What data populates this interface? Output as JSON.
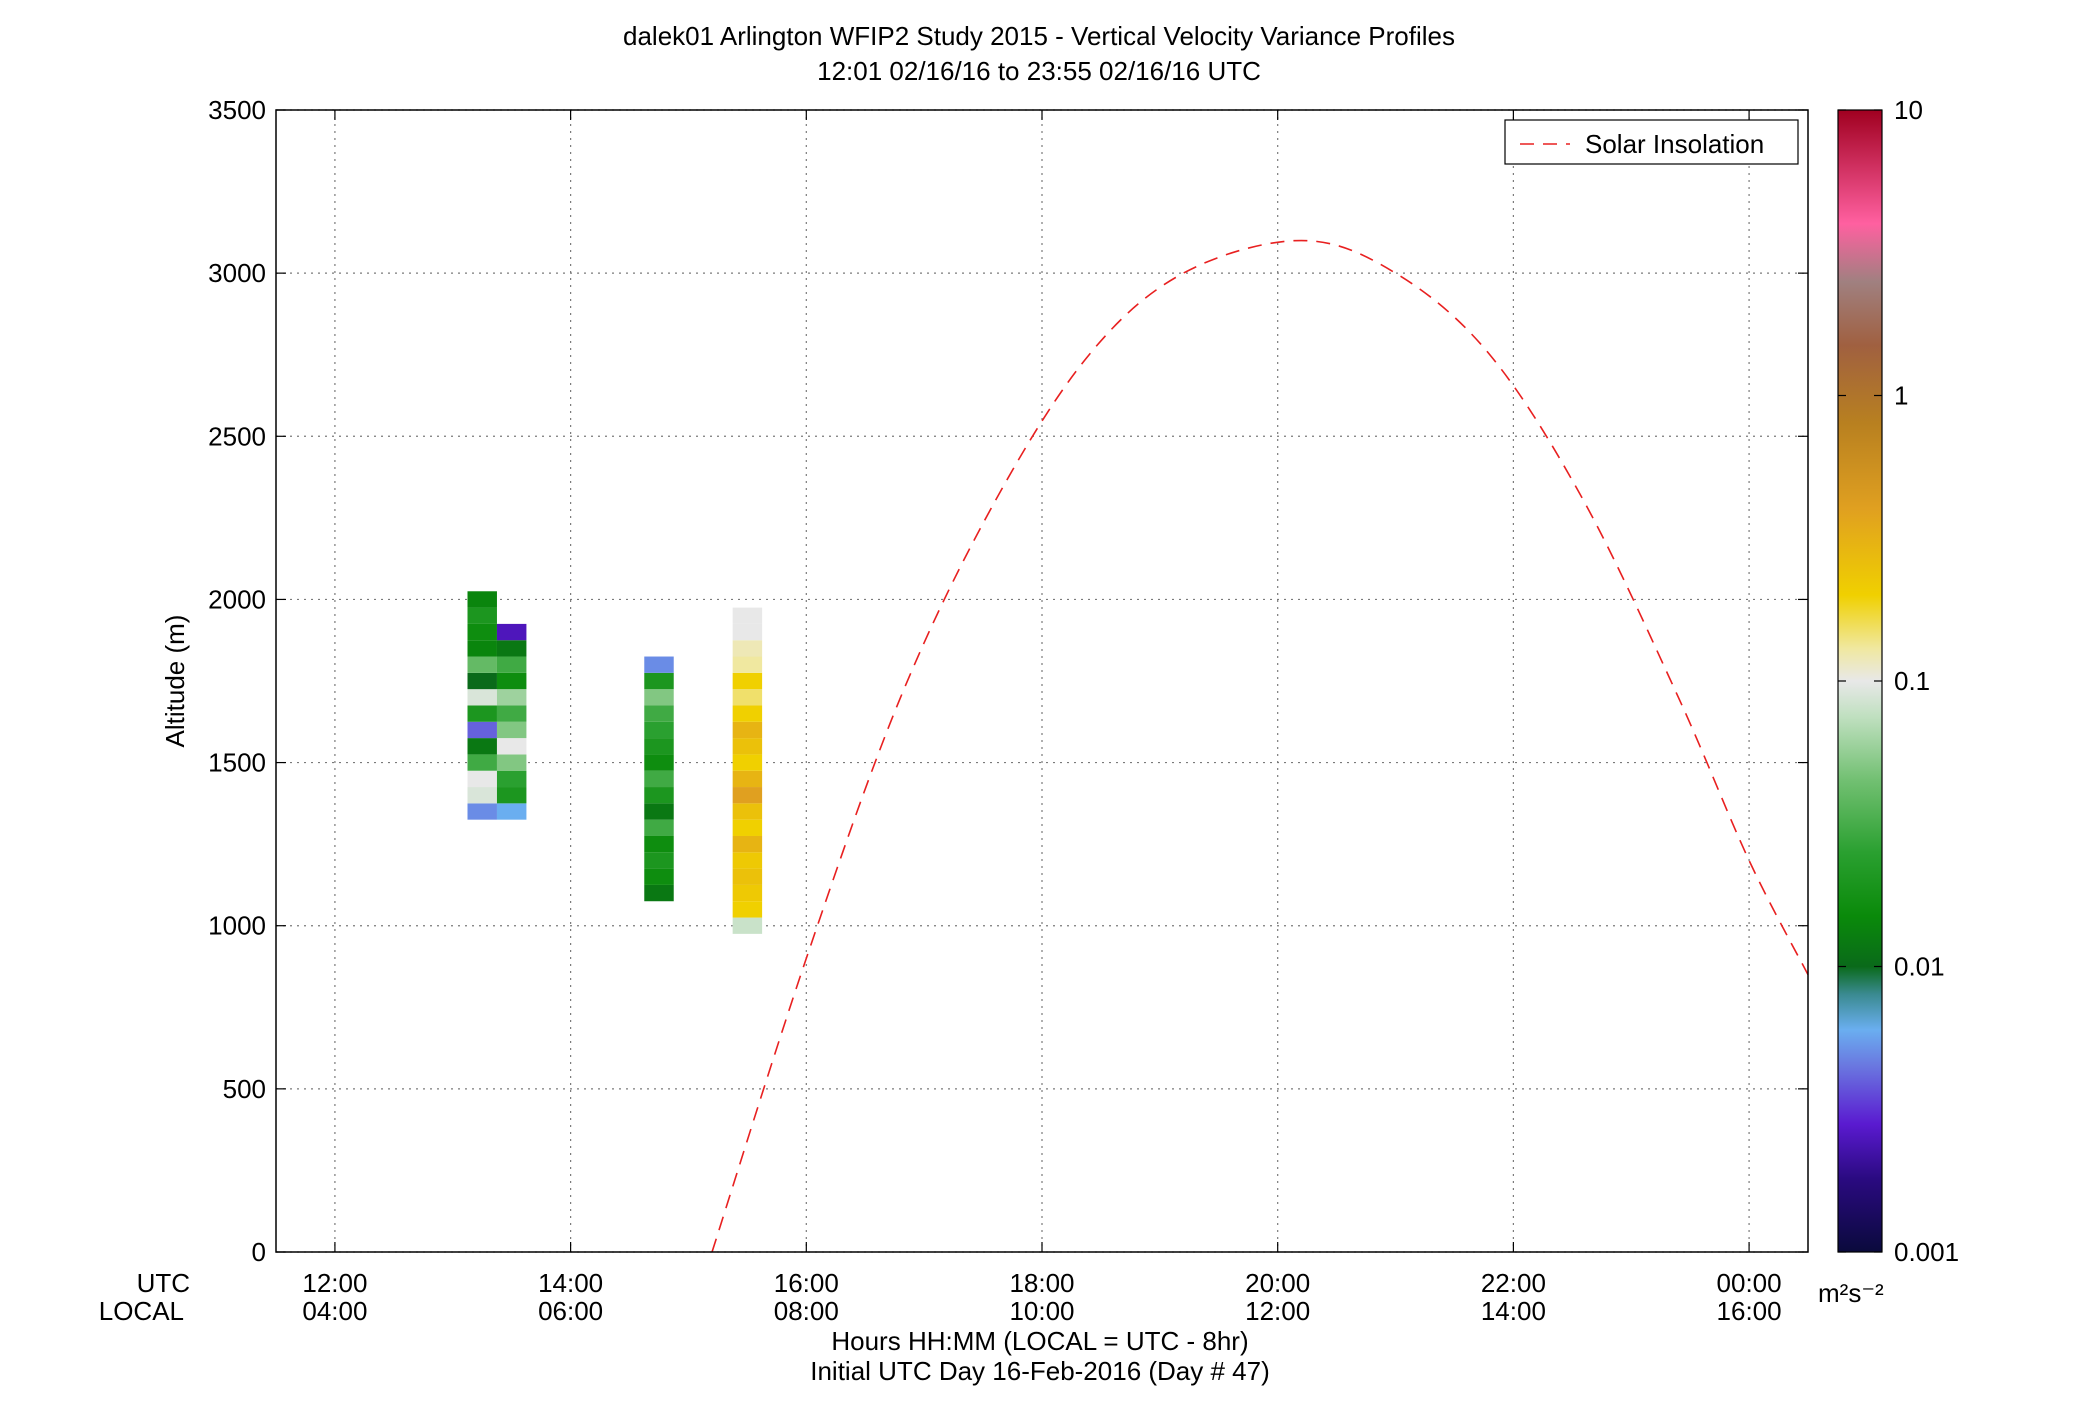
{
  "chart_data": {
    "type": "heatmap",
    "title": "dalek01 Arlington WFIP2 Study 2015 - Vertical Velocity Variance Profiles",
    "subtitle": "12:01 02/16/16 to 23:55 02/16/16  UTC",
    "ylabel": "Altitude (m)",
    "xlabel": "Hours HH:MM  (LOCAL = UTC - 8hr)",
    "xlabel2": "Initial UTC Day 16-Feb-2016 (Day # 47)",
    "axis_row_labels": [
      "UTC",
      "LOCAL"
    ],
    "xlim": [
      11.5,
      24.5
    ],
    "ylim": [
      0,
      3500
    ],
    "grid": true,
    "x_ticks": [
      {
        "value": 12,
        "utc": "12:00",
        "local": "04:00"
      },
      {
        "value": 14,
        "utc": "14:00",
        "local": "06:00"
      },
      {
        "value": 16,
        "utc": "16:00",
        "local": "08:00"
      },
      {
        "value": 18,
        "utc": "18:00",
        "local": "10:00"
      },
      {
        "value": 20,
        "utc": "20:00",
        "local": "12:00"
      },
      {
        "value": 22,
        "utc": "22:00",
        "local": "14:00"
      },
      {
        "value": 24,
        "utc": "00:00",
        "local": "16:00"
      }
    ],
    "y_ticks": [
      {
        "value": 0,
        "label": "0"
      },
      {
        "value": 500,
        "label": "500"
      },
      {
        "value": 1000,
        "label": "1000"
      },
      {
        "value": 1500,
        "label": "1500"
      },
      {
        "value": 2000,
        "label": "2000"
      },
      {
        "value": 2500,
        "label": "2500"
      },
      {
        "value": 3000,
        "label": "3000"
      },
      {
        "value": 3500,
        "label": "3500"
      }
    ],
    "colorbar": {
      "scale": "log",
      "range": [
        0.001,
        10
      ],
      "ticks": [
        {
          "value": 10,
          "label": "10"
        },
        {
          "value": 1,
          "label": "1"
        },
        {
          "value": 0.1,
          "label": "0.1"
        },
        {
          "value": 0.01,
          "label": "0.01"
        },
        {
          "value": 0.001,
          "label": "0.001"
        }
      ],
      "units": "m²s⁻²",
      "stops": [
        {
          "value": 0.001,
          "color": "#0a0a3c"
        },
        {
          "value": 0.0018,
          "color": "#2a0a80"
        },
        {
          "value": 0.0028,
          "color": "#5a1ad0"
        },
        {
          "value": 0.0045,
          "color": "#6a78e0"
        },
        {
          "value": 0.006,
          "color": "#6aaef0"
        },
        {
          "value": 0.008,
          "color": "#3a8a90"
        },
        {
          "value": 0.01,
          "color": "#0a6a1a"
        },
        {
          "value": 0.015,
          "color": "#0a8a0a"
        },
        {
          "value": 0.025,
          "color": "#2aa030"
        },
        {
          "value": 0.045,
          "color": "#72c072"
        },
        {
          "value": 0.075,
          "color": "#c0e0c0"
        },
        {
          "value": 0.1,
          "color": "#e8e8e8"
        },
        {
          "value": 0.13,
          "color": "#f0e8a0"
        },
        {
          "value": 0.2,
          "color": "#f0d000"
        },
        {
          "value": 0.4,
          "color": "#e0a020"
        },
        {
          "value": 0.8,
          "color": "#b88020"
        },
        {
          "value": 1.5,
          "color": "#a06040"
        },
        {
          "value": 2.5,
          "color": "#a08080"
        },
        {
          "value": 4,
          "color": "#ff60a0"
        },
        {
          "value": 10,
          "color": "#a00020"
        }
      ]
    },
    "cell_size": {
      "dt_hours": 0.25,
      "dz_m": 50
    },
    "cells": [
      [
        13.25,
        1350,
        0.005
      ],
      [
        13.25,
        1400,
        0.09
      ],
      [
        13.25,
        1450,
        0.1
      ],
      [
        13.25,
        1500,
        0.03
      ],
      [
        13.25,
        1550,
        0.012
      ],
      [
        13.25,
        1600,
        0.004
      ],
      [
        13.25,
        1650,
        0.02
      ],
      [
        13.25,
        1700,
        0.09
      ],
      [
        13.25,
        1750,
        0.01
      ],
      [
        13.25,
        1800,
        0.04
      ],
      [
        13.25,
        1850,
        0.014
      ],
      [
        13.25,
        1900,
        0.016
      ],
      [
        13.25,
        1950,
        0.02
      ],
      [
        13.25,
        2000,
        0.014
      ],
      [
        13.5,
        1350,
        0.006
      ],
      [
        13.5,
        1400,
        0.02
      ],
      [
        13.5,
        1450,
        0.025
      ],
      [
        13.5,
        1500,
        0.05
      ],
      [
        13.5,
        1550,
        0.1
      ],
      [
        13.5,
        1600,
        0.05
      ],
      [
        13.5,
        1650,
        0.03
      ],
      [
        13.5,
        1700,
        0.06
      ],
      [
        13.5,
        1750,
        0.016
      ],
      [
        13.5,
        1800,
        0.03
      ],
      [
        13.5,
        1850,
        0.012
      ],
      [
        13.5,
        1900,
        0.0025
      ],
      [
        14.75,
        1100,
        0.012
      ],
      [
        14.75,
        1150,
        0.016
      ],
      [
        14.75,
        1200,
        0.02
      ],
      [
        14.75,
        1250,
        0.016
      ],
      [
        14.75,
        1300,
        0.03
      ],
      [
        14.75,
        1350,
        0.012
      ],
      [
        14.75,
        1400,
        0.02
      ],
      [
        14.75,
        1450,
        0.03
      ],
      [
        14.75,
        1500,
        0.016
      ],
      [
        14.75,
        1550,
        0.02
      ],
      [
        14.75,
        1600,
        0.025
      ],
      [
        14.75,
        1650,
        0.03
      ],
      [
        14.75,
        1700,
        0.05
      ],
      [
        14.75,
        1750,
        0.02
      ],
      [
        14.75,
        1800,
        0.005
      ],
      [
        15.5,
        1000,
        0.08
      ],
      [
        15.5,
        1050,
        0.2
      ],
      [
        15.5,
        1100,
        0.22
      ],
      [
        15.5,
        1150,
        0.25
      ],
      [
        15.5,
        1200,
        0.22
      ],
      [
        15.5,
        1250,
        0.3
      ],
      [
        15.5,
        1300,
        0.2
      ],
      [
        15.5,
        1350,
        0.25
      ],
      [
        15.5,
        1400,
        0.4
      ],
      [
        15.5,
        1450,
        0.3
      ],
      [
        15.5,
        1500,
        0.2
      ],
      [
        15.5,
        1550,
        0.25
      ],
      [
        15.5,
        1600,
        0.3
      ],
      [
        15.5,
        1650,
        0.2
      ],
      [
        15.5,
        1700,
        0.15
      ],
      [
        15.5,
        1750,
        0.2
      ],
      [
        15.5,
        1800,
        0.13
      ],
      [
        15.5,
        1850,
        0.12
      ],
      [
        15.5,
        1900,
        0.1
      ],
      [
        15.5,
        1950,
        0.1
      ]
    ],
    "solar_insolation": {
      "name": "Solar Insolation",
      "color": "#e82020",
      "x": [
        15.2,
        16.0,
        16.8,
        17.6,
        18.4,
        19.2,
        20.2,
        21.0,
        21.8,
        22.6,
        23.4,
        24.0,
        24.5
      ],
      "y": [
        0,
        900,
        1700,
        2300,
        2750,
        3000,
        3100,
        3000,
        2750,
        2300,
        1700,
        1200,
        850
      ]
    },
    "legend_position": "top-right"
  }
}
